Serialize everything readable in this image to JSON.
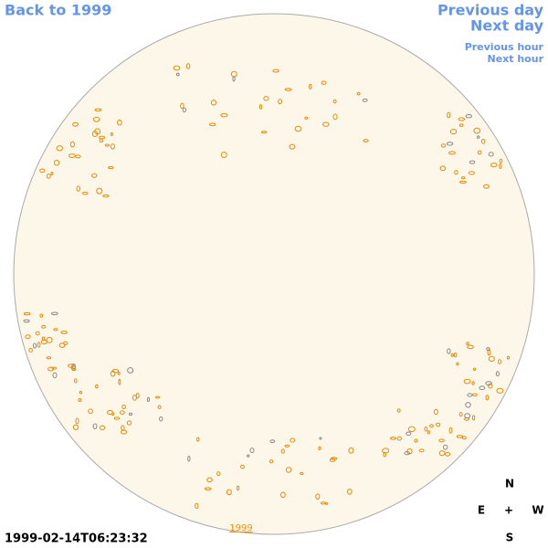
{
  "nav": {
    "back": "Back to 1999",
    "previous_day": "Previous day",
    "next_day": "Next day",
    "previous_hour": "Previous hour",
    "next_hour": "Next hour"
  },
  "timestamp": "1999-02-14T06:23:32",
  "year_link": "1999",
  "compass": {
    "north": "N",
    "east": "E",
    "center": "+",
    "west": "W",
    "south": "S"
  }
}
